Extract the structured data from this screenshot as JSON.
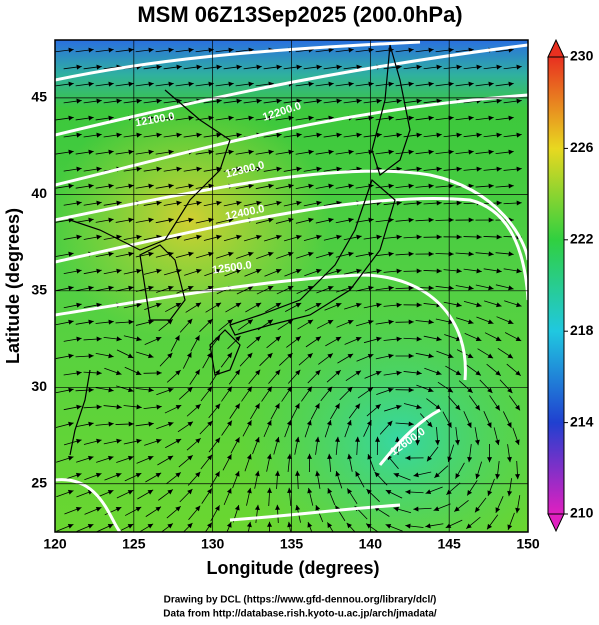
{
  "title": "MSM 06Z13Sep2025 (200.0hPa)",
  "x_axis": {
    "label": "Longitude (degrees)",
    "lim": [
      120,
      150
    ],
    "ticks": [
      120,
      125,
      130,
      135,
      140,
      145,
      150
    ]
  },
  "y_axis": {
    "label": "Latitude  (degrees)",
    "lim": [
      22.5,
      48
    ],
    "ticks": [
      25,
      30,
      35,
      40,
      45
    ]
  },
  "colorbar": {
    "lim": [
      210,
      230
    ],
    "ticks": [
      210,
      214,
      218,
      222,
      226,
      230
    ]
  },
  "contour_labels": [
    "12100.0",
    "12200.0",
    "12300.0",
    "12400.0",
    "12500.0",
    "12600.0"
  ],
  "footer": [
    "Drawing by DCL (https://www.gfd-dennou.org/library/dcl/)",
    "Data from http://database.rish.kyoto-u.ac.jp/arch/jmadata/"
  ]
}
